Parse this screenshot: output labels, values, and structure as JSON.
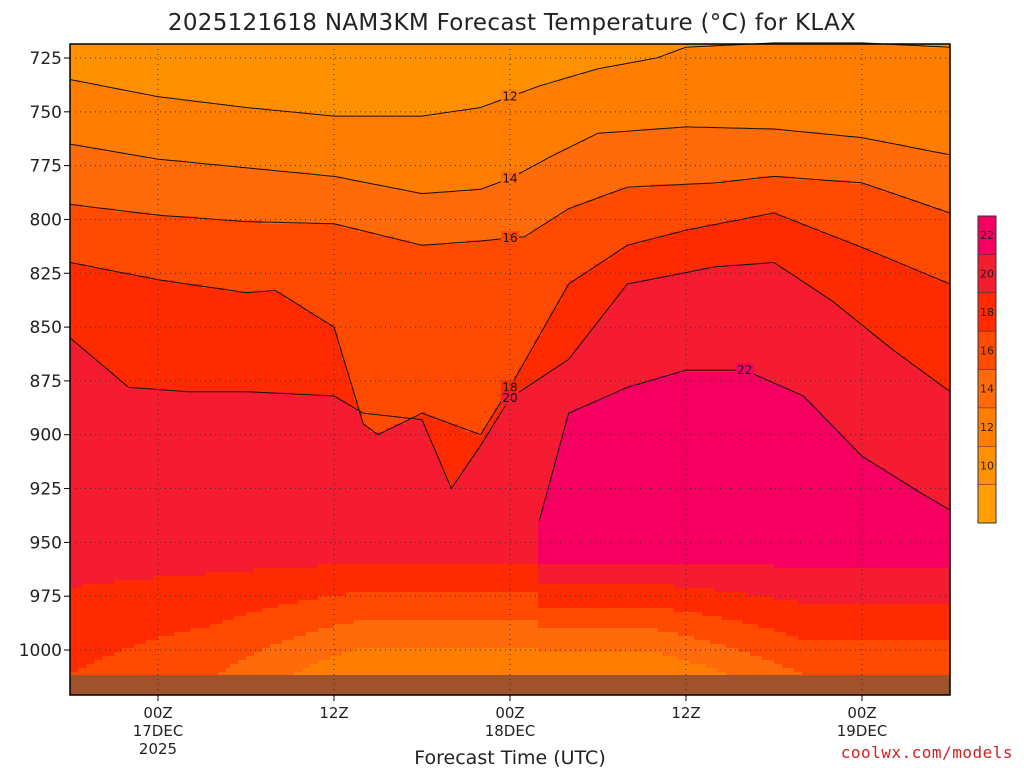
{
  "chart_data": {
    "type": "heatmap",
    "title": "2025121618 NAM3KM Forecast Temperature (°C) for KLAX",
    "xlabel": "Forecast Time (UTC)",
    "ylabel": "",
    "credit": "coolwx.com/models",
    "y_axis": {
      "name": "pressure",
      "ticks": [
        725,
        750,
        775,
        800,
        825,
        850,
        875,
        900,
        925,
        950,
        975,
        1000
      ]
    },
    "x_axis": {
      "ticks": [
        {
          "hour": 6,
          "lines": [
            "00Z",
            "17DEC",
            "2025"
          ]
        },
        {
          "hour": 18,
          "lines": [
            "12Z"
          ]
        },
        {
          "hour": 30,
          "lines": [
            "00Z",
            "18DEC"
          ]
        },
        {
          "hour": 42,
          "lines": [
            "12Z"
          ]
        },
        {
          "hour": 54,
          "lines": [
            "00Z",
            "19DEC"
          ]
        }
      ],
      "range": [
        0,
        60
      ]
    },
    "colorbar": {
      "levels": [
        8,
        10,
        12,
        14,
        16,
        18,
        20,
        22,
        24
      ],
      "labels": [
        "10",
        "12",
        "14",
        "16",
        "18",
        "20",
        "22"
      ],
      "colors": [
        "#ffa000",
        "#ff9100",
        "#ff7d00",
        "#ff6a0a",
        "#ff4a00",
        "#ff2a00",
        "#f51c32",
        "#f50060"
      ]
    },
    "isotherms": [
      {
        "value": 12,
        "samples": [
          [
            0,
            735
          ],
          [
            6,
            743
          ],
          [
            12,
            748
          ],
          [
            18,
            752
          ],
          [
            24,
            752
          ],
          [
            28,
            748
          ],
          [
            32,
            738
          ],
          [
            36,
            730
          ],
          [
            40,
            725
          ],
          [
            42,
            720
          ],
          [
            48,
            718
          ],
          [
            54,
            718
          ],
          [
            60,
            720
          ]
        ]
      },
      {
        "value": 14,
        "samples": [
          [
            0,
            765
          ],
          [
            6,
            772
          ],
          [
            12,
            776
          ],
          [
            18,
            780
          ],
          [
            24,
            788
          ],
          [
            28,
            786
          ],
          [
            30,
            781
          ],
          [
            33,
            770
          ],
          [
            36,
            760
          ],
          [
            42,
            757
          ],
          [
            48,
            758
          ],
          [
            54,
            762
          ],
          [
            60,
            770
          ]
        ]
      },
      {
        "value": 16,
        "samples": [
          [
            0,
            793
          ],
          [
            6,
            798
          ],
          [
            12,
            801
          ],
          [
            18,
            802
          ],
          [
            24,
            812
          ],
          [
            28,
            810
          ],
          [
            31,
            808
          ],
          [
            34,
            795
          ],
          [
            38,
            785
          ],
          [
            44,
            783
          ],
          [
            48,
            780
          ],
          [
            54,
            783
          ],
          [
            60,
            797
          ]
        ]
      },
      {
        "value": 18,
        "samples": [
          [
            0,
            820
          ],
          [
            6,
            828
          ],
          [
            12,
            834
          ],
          [
            14,
            833
          ],
          [
            18,
            850
          ],
          [
            20,
            895
          ],
          [
            21,
            900
          ],
          [
            24,
            890
          ],
          [
            28,
            900
          ],
          [
            30,
            878
          ],
          [
            34,
            830
          ],
          [
            38,
            812
          ],
          [
            42,
            805
          ],
          [
            48,
            797
          ],
          [
            54,
            813
          ],
          [
            60,
            830
          ]
        ]
      },
      {
        "value": 20,
        "samples": [
          [
            0,
            855
          ],
          [
            4,
            878
          ],
          [
            8,
            880
          ],
          [
            12,
            880
          ],
          [
            18,
            882
          ],
          [
            20,
            890
          ],
          [
            24,
            893
          ],
          [
            26,
            925
          ],
          [
            28,
            905
          ],
          [
            30,
            883
          ],
          [
            34,
            865
          ],
          [
            38,
            830
          ],
          [
            44,
            822
          ],
          [
            48,
            820
          ],
          [
            52,
            838
          ],
          [
            56,
            860
          ],
          [
            60,
            880
          ]
        ]
      },
      {
        "value": 22,
        "samples": [
          [
            32,
            940
          ],
          [
            34,
            890
          ],
          [
            38,
            878
          ],
          [
            42,
            870
          ],
          [
            46,
            870
          ],
          [
            50,
            882
          ],
          [
            54,
            910
          ],
          [
            58,
            927
          ],
          [
            60,
            935
          ]
        ]
      }
    ],
    "surface": {
      "values": [
        18,
        17,
        16,
        14,
        12,
        12,
        12,
        12,
        12,
        14,
        16,
        16,
        16
      ]
    }
  }
}
